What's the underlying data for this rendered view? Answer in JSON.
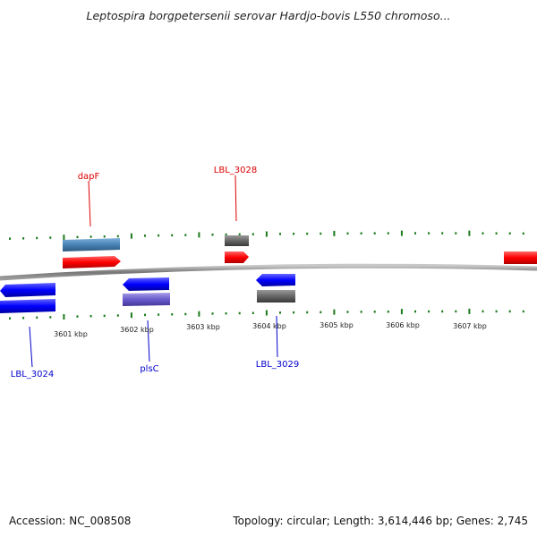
{
  "title": "Leptospira borgpetersenii serovar Hardjo-bovis L550 chromoso...",
  "footer": {
    "accession": "Accession: NC_008508",
    "summary": "Topology: circular; Length: 3,614,446 bp; Genes: 2,745"
  },
  "scale": {
    "unit": "kbp",
    "ticks": [
      "3601 kbp",
      "3602 kbp",
      "3603 kbp",
      "3604 kbp",
      "3605 kbp",
      "3606 kbp",
      "3607 kbp"
    ]
  },
  "genes": [
    {
      "label": "dapF",
      "color": "#dd0000",
      "strand": "+"
    },
    {
      "label": "LBL_3028",
      "color": "#dd0000",
      "strand": "+"
    },
    {
      "label": "LBL_3024",
      "color": "#0000cc",
      "strand": "-"
    },
    {
      "label": "plsC",
      "color": "#0000cc",
      "strand": "-"
    },
    {
      "label": "LBL_3029",
      "color": "#0000cc",
      "strand": "-"
    }
  ],
  "colors": {
    "forward_cds": "#ff0000",
    "reverse_cds": "#0000ff",
    "backbone": "#888888",
    "gc_ticks": "#1a7a1a",
    "feature_steel_blue": "#4682b4",
    "feature_gray": "#555555",
    "feature_slate": "#6a5acd"
  }
}
